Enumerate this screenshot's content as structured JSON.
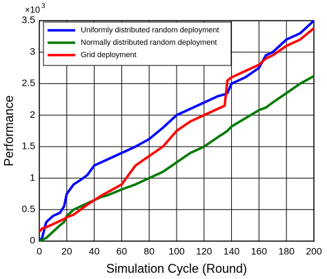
{
  "chart_data": {
    "type": "line",
    "xlabel": "Simulation Cycle (Round)",
    "ylabel": "Performance",
    "y_scale_label": "×10",
    "y_scale_exponent": "3",
    "x": [
      0,
      2,
      5,
      10,
      15,
      18,
      20,
      25,
      30,
      35,
      40,
      45,
      50,
      60,
      70,
      80,
      90,
      100,
      110,
      120,
      130,
      135,
      137,
      140,
      150,
      160,
      165,
      170,
      180,
      190,
      200
    ],
    "series": [
      {
        "name": "Uniformly distributed random deployment",
        "color": "#0000ff",
        "values": [
          0,
          0.05,
          0.3,
          0.4,
          0.45,
          0.55,
          0.75,
          0.9,
          0.97,
          1.05,
          1.2,
          1.25,
          1.3,
          1.4,
          1.5,
          1.62,
          1.8,
          2.0,
          2.1,
          2.2,
          2.3,
          2.33,
          2.35,
          2.5,
          2.6,
          2.75,
          2.95,
          3.0,
          3.2,
          3.3,
          3.5
        ]
      },
      {
        "name": "Normally distributed random deployment",
        "color": "#007a00",
        "values": [
          0,
          0.02,
          0.05,
          0.15,
          0.25,
          0.3,
          0.4,
          0.5,
          0.55,
          0.6,
          0.65,
          0.7,
          0.73,
          0.82,
          0.9,
          1.0,
          1.1,
          1.25,
          1.4,
          1.5,
          1.65,
          1.72,
          1.75,
          1.82,
          1.95,
          2.08,
          2.12,
          2.2,
          2.35,
          2.5,
          2.62
        ]
      },
      {
        "name": "Grid deployment",
        "color": "#ff0000",
        "values": [
          0.15,
          0.2,
          0.22,
          0.27,
          0.32,
          0.35,
          0.38,
          0.42,
          0.5,
          0.58,
          0.65,
          0.72,
          0.78,
          0.9,
          1.2,
          1.35,
          1.5,
          1.75,
          1.9,
          2.0,
          2.1,
          2.15,
          2.55,
          2.6,
          2.7,
          2.8,
          2.9,
          2.95,
          3.1,
          3.2,
          3.38
        ]
      }
    ],
    "xlim": [
      0,
      200
    ],
    "xticks": [
      0,
      20,
      40,
      60,
      80,
      100,
      120,
      140,
      160,
      180,
      200
    ],
    "ylim": [
      0,
      3.5
    ],
    "yticks": [
      0,
      0.5,
      1,
      1.5,
      2,
      2.5,
      3,
      3.5
    ],
    "grid": true,
    "legend": "upper left"
  }
}
